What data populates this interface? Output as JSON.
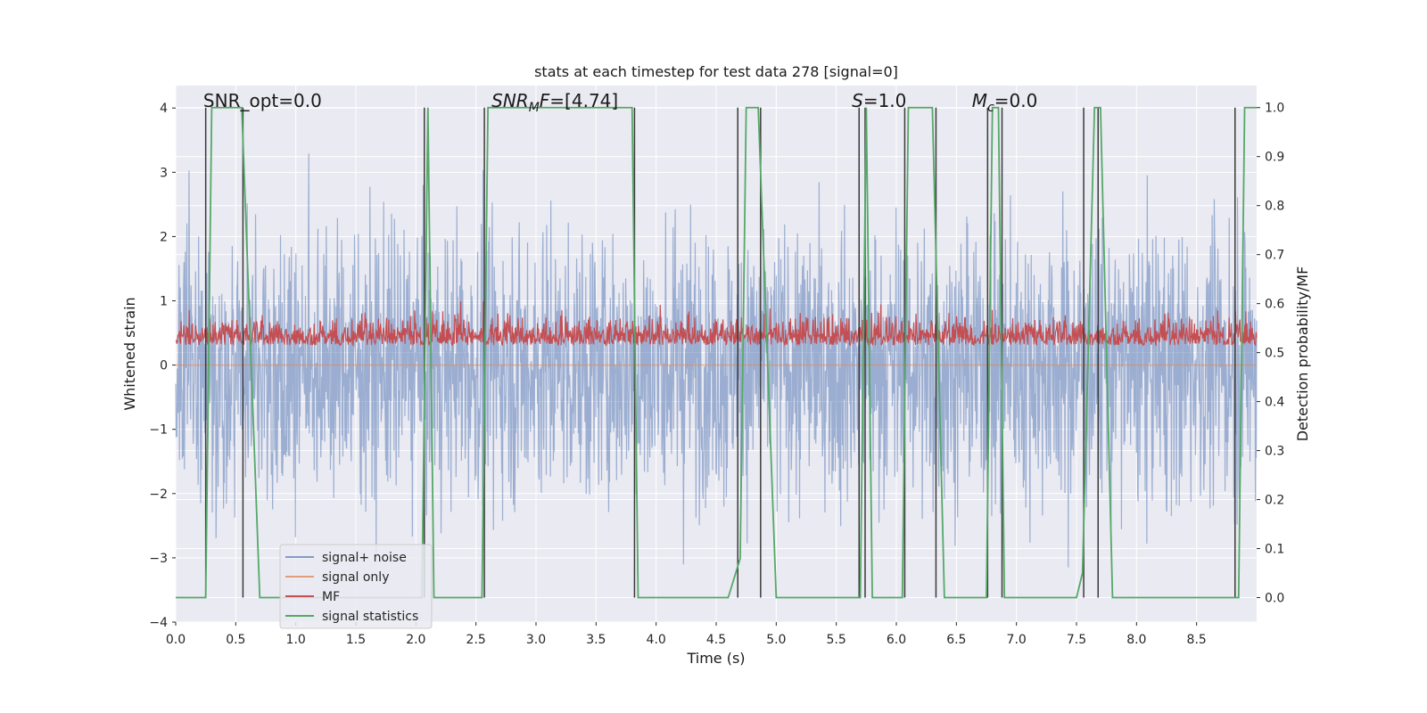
{
  "chart_data": {
    "type": "line",
    "title": "stats at each timestep for test data 278 [signal=0]",
    "xlabel": "Time (s)",
    "ylabel": "Whitened strain",
    "y2label": "Detection probability/MF",
    "xlim": [
      0.0,
      9.0
    ],
    "ylim": [
      -4.0,
      4.35
    ],
    "y2lim": [
      -0.05,
      1.045
    ],
    "xticks": [
      0.0,
      0.5,
      1.0,
      1.5,
      2.0,
      2.5,
      3.0,
      3.5,
      4.0,
      4.5,
      5.0,
      5.5,
      6.0,
      6.5,
      7.0,
      7.5,
      8.0,
      8.5
    ],
    "xtick_labels": [
      "0.0",
      "0.5",
      "1.0",
      "1.5",
      "2.0",
      "2.5",
      "3.0",
      "3.5",
      "4.0",
      "4.5",
      "5.0",
      "5.5",
      "6.0",
      "6.5",
      "7.0",
      "7.5",
      "8.0",
      "8.5"
    ],
    "yticks": [
      -4,
      -3,
      -2,
      -1,
      0,
      1,
      2,
      3,
      4
    ],
    "ytick_labels": [
      "−4",
      "−3",
      "−2",
      "−1",
      "0",
      "1",
      "2",
      "3",
      "4"
    ],
    "y2ticks": [
      0.0,
      0.1,
      0.2,
      0.3,
      0.4,
      0.5,
      0.6,
      0.7,
      0.8,
      0.9,
      1.0
    ],
    "y2tick_labels": [
      "0.0",
      "0.1",
      "0.2",
      "0.3",
      "0.4",
      "0.5",
      "0.6",
      "0.7",
      "0.8",
      "0.9",
      "1.0"
    ],
    "grid": true,
    "legend_position": "lower-left",
    "series": [
      {
        "name": "signal+ noise",
        "color": "#4c72b0",
        "alpha": 0.5,
        "axis": "left",
        "kind": "noise",
        "description_range": [
          -3.4,
          3.9
        ]
      },
      {
        "name": "signal only",
        "color": "#dd8452",
        "alpha": 0.6,
        "axis": "left",
        "kind": "flat",
        "values_y": 0.0
      },
      {
        "name": "MF",
        "color": "#c44e52",
        "axis": "right",
        "kind": "noise",
        "description_range": [
          0.5,
          0.62
        ]
      },
      {
        "name": "signal statistics",
        "color": "#55a868",
        "axis": "right",
        "kind": "step",
        "x": [
          0.0,
          0.25,
          0.3,
          0.55,
          0.7,
          2.05,
          2.1,
          2.15,
          2.55,
          2.6,
          3.8,
          3.85,
          4.6,
          4.7,
          4.75,
          4.85,
          5.0,
          5.7,
          5.75,
          5.8,
          6.05,
          6.1,
          6.3,
          6.4,
          6.75,
          6.8,
          6.85,
          6.9,
          7.5,
          7.55,
          7.65,
          7.7,
          7.8,
          8.85,
          8.9,
          9.0
        ],
        "y": [
          0.0,
          0.0,
          1.0,
          1.0,
          0.0,
          0.0,
          1.0,
          0.0,
          0.0,
          1.0,
          1.0,
          0.0,
          0.0,
          0.08,
          1.0,
          1.0,
          0.0,
          0.0,
          1.0,
          0.0,
          0.0,
          1.0,
          1.0,
          0.0,
          0.0,
          1.0,
          1.0,
          0.0,
          0.0,
          0.05,
          1.0,
          1.0,
          0.0,
          0.0,
          1.0,
          1.0
        ]
      }
    ],
    "event_markers": {
      "color": "#3a3a3a",
      "x": [
        0.25,
        0.56,
        2.07,
        2.57,
        3.82,
        4.68,
        4.87,
        5.69,
        5.74,
        6.07,
        6.33,
        6.76,
        6.88,
        7.56,
        7.68,
        8.82
      ]
    },
    "annotations": [
      {
        "text": "SNR_opt=0.0",
        "x": 0.2,
        "y": 4.0,
        "italic": false
      },
      {
        "text": "SNR_MF=[4.74]",
        "x": 2.6,
        "y": 4.0,
        "italic": true,
        "parts": [
          "SNR",
          "M",
          "F=[4.74]"
        ]
      },
      {
        "text": "S=1.0",
        "x": 5.6,
        "y": 4.0,
        "italic": true,
        "parts": [
          "S",
          "",
          "=1.0"
        ]
      },
      {
        "text": "M_c=0.0",
        "x": 6.6,
        "y": 4.0,
        "italic": true,
        "parts": [
          "M",
          "c",
          "=0.0"
        ]
      }
    ]
  }
}
